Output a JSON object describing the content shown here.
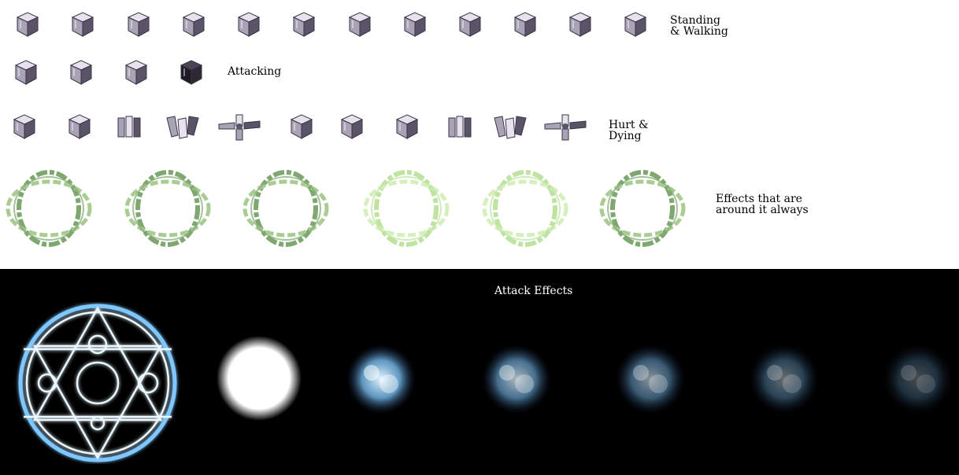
{
  "labels": {
    "standing_line1": "Standing",
    "standing_line2": "& Walking",
    "attacking": "Attacking",
    "hurt_line1": "Hurt &",
    "hurt_line2": "Dying",
    "effects_line1": "Effects that are",
    "effects_line2": "around it always",
    "attack_effects": "Attack Effects"
  },
  "sprites": {
    "standing_walking": [
      "cube-icon",
      "cube-icon",
      "cube-icon",
      "cube-icon",
      "cube-icon",
      "cube-icon",
      "cube-icon",
      "cube-icon",
      "cube-icon",
      "cube-icon",
      "cube-icon",
      "cube-icon"
    ],
    "attacking": [
      "cube-icon",
      "cube-icon",
      "cube-icon",
      "dark-cube-icon"
    ],
    "hurt_dying": [
      "cube-icon",
      "cube-icon",
      "broken-cube-icon",
      "shattered-cube-icon",
      "cross-pieces-icon",
      "cube-icon",
      "cube-icon",
      "cube-icon",
      "broken-cube-icon",
      "shattered-cube-icon",
      "cross-pieces-icon"
    ],
    "aura_effects": [
      "green-ring-icon",
      "green-ring-icon",
      "green-ring-icon",
      "green-ring-icon",
      "green-ring-icon",
      "green-ring-icon"
    ],
    "attack_effects": [
      "magic-circle-icon",
      "glow-orb-icon",
      "blue-burst-icon",
      "blue-burst-icon",
      "blue-burst-icon",
      "blue-burst-icon",
      "blue-burst-icon"
    ]
  },
  "colors": {
    "top_background": "#ffffff",
    "bottom_background": "#000000",
    "cube_light": "#e6e3ee",
    "cube_mid": "#a8a3b5",
    "cube_dark": "#5a5468",
    "ring_green": "#7fa870",
    "ring_light_green": "#bfe3a0",
    "magic_blue": "#7fc8ff"
  }
}
